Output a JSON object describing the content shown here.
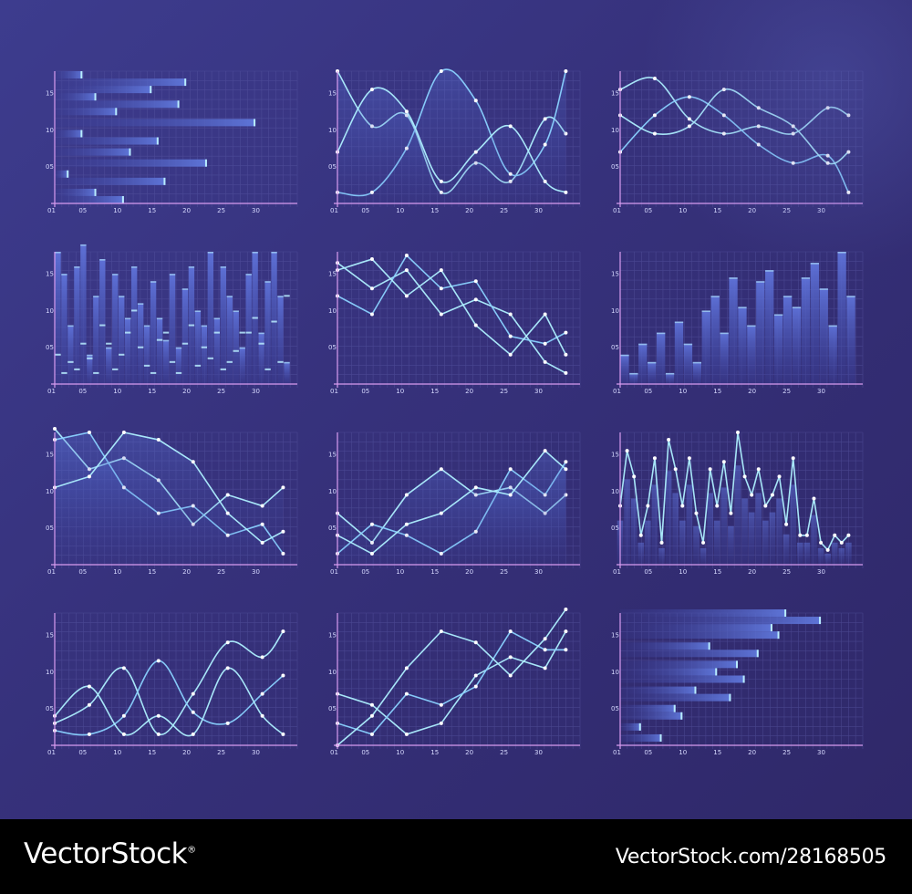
{
  "palette": {
    "grid": "#5b5aa6",
    "axis": "#d89cf0",
    "line": "#8ad2ff",
    "line_bright": "#aef0ff",
    "bar": "#5a6fd2",
    "bar_cap": "#b8ecff",
    "point": "#ffffff",
    "tick_text": "#d7d9ff"
  },
  "footer": {
    "brand": "VectorStock",
    "registered": "®",
    "credit": "VectorStock.com/28168505"
  },
  "chart_data": [
    {
      "type": "bar",
      "orientation": "horizontal",
      "xticks": [
        "01",
        "05",
        "10",
        "15",
        "20",
        "25",
        "30"
      ],
      "yticks": [
        "05",
        "10",
        "15"
      ],
      "xlim": [
        1,
        35
      ],
      "ylim": [
        0,
        18
      ],
      "grid": true,
      "bars": [
        {
          "y": 17.5,
          "value": 5
        },
        {
          "y": 16.5,
          "value": 20
        },
        {
          "y": 15.5,
          "value": 15
        },
        {
          "y": 14.5,
          "value": 7
        },
        {
          "y": 13.5,
          "value": 19
        },
        {
          "y": 12.5,
          "value": 10
        },
        {
          "y": 11.0,
          "value": 30
        },
        {
          "y": 9.5,
          "value": 5
        },
        {
          "y": 8.5,
          "value": 16
        },
        {
          "y": 7.0,
          "value": 12
        },
        {
          "y": 5.5,
          "value": 23
        },
        {
          "y": 4.0,
          "value": 3
        },
        {
          "y": 3.0,
          "value": 17
        },
        {
          "y": 1.5,
          "value": 7
        },
        {
          "y": 0.5,
          "value": 11
        }
      ]
    },
    {
      "type": "line",
      "smooth": true,
      "xticks": [
        "01",
        "05",
        "10",
        "15",
        "20",
        "25",
        "30"
      ],
      "yticks": [
        "05",
        "10",
        "15"
      ],
      "xlim": [
        1,
        35
      ],
      "ylim": [
        0,
        18
      ],
      "grid": true,
      "area": true,
      "series": [
        {
          "x": [
            1,
            6,
            11,
            16,
            21,
            26,
            31,
            34
          ],
          "y": [
            18,
            10.5,
            12,
            1.5,
            5.5,
            3,
            11.5,
            9.5
          ]
        },
        {
          "x": [
            1,
            6,
            11,
            16,
            21,
            26,
            31,
            34
          ],
          "y": [
            1.5,
            1.5,
            7.5,
            18,
            14,
            4,
            8,
            18
          ]
        },
        {
          "x": [
            1,
            6,
            11,
            16,
            21,
            26,
            31,
            34
          ],
          "y": [
            7,
            15.5,
            12.5,
            3,
            7,
            10.5,
            3,
            1.5
          ]
        }
      ]
    },
    {
      "type": "line",
      "smooth": true,
      "xticks": [
        "01",
        "05",
        "10",
        "15",
        "20",
        "25",
        "30"
      ],
      "yticks": [
        "05",
        "10",
        "15"
      ],
      "xlim": [
        1,
        35
      ],
      "ylim": [
        0,
        18
      ],
      "grid": true,
      "series": [
        {
          "x": [
            1,
            6,
            11,
            16,
            21,
            26,
            31,
            34
          ],
          "y": [
            15.5,
            17,
            11.5,
            9.5,
            10.5,
            9.5,
            13,
            12
          ]
        },
        {
          "x": [
            1,
            6,
            11,
            16,
            21,
            26,
            31,
            34
          ],
          "y": [
            7,
            12,
            14.5,
            12,
            8,
            5.5,
            6.5,
            1.5
          ]
        },
        {
          "x": [
            1,
            6,
            11,
            16,
            21,
            26,
            31,
            34
          ],
          "y": [
            12,
            9.5,
            10.5,
            15.5,
            13,
            10.5,
            5.5,
            7
          ]
        }
      ]
    },
    {
      "type": "bar",
      "orientation": "vertical",
      "xticks": [
        "01",
        "05",
        "10",
        "15",
        "20",
        "25",
        "30"
      ],
      "yticks": [
        "05",
        "10",
        "15"
      ],
      "xlim": [
        1,
        35
      ],
      "ylim": [
        0,
        18
      ],
      "grid": true,
      "values": [
        18,
        15,
        8,
        16,
        19,
        4,
        12,
        17,
        5,
        15,
        12,
        9,
        16,
        11,
        8,
        14,
        9,
        6,
        15,
        5,
        13,
        16,
        10,
        8,
        18,
        9,
        16,
        12,
        10,
        5,
        15,
        18,
        7,
        14,
        18,
        12,
        3
      ],
      "marker_values": [
        4,
        1.5,
        3,
        2,
        5.5,
        3.5,
        1.5,
        8,
        5.5,
        2,
        4,
        7,
        10,
        5,
        2.5,
        1.5,
        6,
        7,
        3,
        1.5,
        5.5,
        8,
        2.5,
        5,
        3.5,
        7,
        2,
        3,
        4.5,
        7,
        7,
        9,
        5.5,
        2,
        8.5,
        3,
        12
      ]
    },
    {
      "type": "line",
      "smooth": false,
      "xticks": [
        "01",
        "05",
        "10",
        "15",
        "20",
        "25",
        "30"
      ],
      "yticks": [
        "05",
        "10",
        "15"
      ],
      "xlim": [
        1,
        35
      ],
      "ylim": [
        0,
        18
      ],
      "grid": true,
      "series": [
        {
          "x": [
            1,
            6,
            11,
            16,
            21,
            26,
            31,
            34
          ],
          "y": [
            16.5,
            13,
            15.5,
            9.5,
            11.5,
            9.5,
            3,
            1.5
          ]
        },
        {
          "x": [
            1,
            6,
            11,
            16,
            21,
            26,
            31,
            34
          ],
          "y": [
            12,
            9.5,
            17.5,
            13,
            14,
            6.5,
            5.5,
            7
          ]
        },
        {
          "x": [
            1,
            6,
            11,
            16,
            21,
            26,
            31,
            34
          ],
          "y": [
            15.5,
            17,
            12,
            15.5,
            8,
            4,
            9.5,
            4
          ]
        }
      ]
    },
    {
      "type": "bar",
      "orientation": "vertical",
      "xticks": [
        "01",
        "05",
        "10",
        "15",
        "20",
        "25",
        "30"
      ],
      "yticks": [
        "05",
        "10",
        "15"
      ],
      "xlim": [
        1,
        35
      ],
      "ylim": [
        0,
        18
      ],
      "grid": true,
      "values": [
        4,
        1.5,
        5.5,
        3,
        7,
        1.5,
        8.5,
        5.5,
        3,
        10,
        12,
        7,
        14.5,
        10.5,
        8,
        14,
        15.5,
        9.5,
        12,
        10.5,
        14.5,
        16.5,
        13,
        8,
        18,
        12
      ]
    },
    {
      "type": "line",
      "smooth": false,
      "xticks": [
        "01",
        "05",
        "10",
        "15",
        "20",
        "25",
        "30"
      ],
      "yticks": [
        "05",
        "10",
        "15"
      ],
      "xlim": [
        1,
        35
      ],
      "ylim": [
        0,
        18
      ],
      "grid": true,
      "area": true,
      "series": [
        {
          "x": [
            1,
            6,
            11,
            16,
            21,
            26,
            31,
            34
          ],
          "y": [
            18.5,
            13,
            14.5,
            11.5,
            5.5,
            9.5,
            8,
            10.5
          ]
        },
        {
          "x": [
            1,
            6,
            11,
            16,
            21,
            26,
            31,
            34
          ],
          "y": [
            17,
            18,
            10.5,
            7,
            8,
            4,
            5.5,
            1.5
          ]
        },
        {
          "x": [
            1,
            6,
            11,
            16,
            21,
            26,
            31,
            34
          ],
          "y": [
            10.5,
            12,
            18,
            17,
            14,
            7,
            3,
            4.5
          ]
        }
      ]
    },
    {
      "type": "line",
      "smooth": false,
      "xticks": [
        "01",
        "05",
        "10",
        "15",
        "20",
        "25",
        "30"
      ],
      "yticks": [
        "05",
        "10",
        "15"
      ],
      "xlim": [
        1,
        35
      ],
      "ylim": [
        0,
        18
      ],
      "grid": true,
      "area": true,
      "series": [
        {
          "x": [
            1,
            6,
            11,
            16,
            21,
            26,
            31,
            34
          ],
          "y": [
            7,
            3,
            9.5,
            13,
            9.5,
            10.5,
            7,
            9.5
          ]
        },
        {
          "x": [
            1,
            6,
            11,
            16,
            21,
            26,
            31,
            34
          ],
          "y": [
            1.5,
            5.5,
            4,
            1.5,
            4.5,
            13,
            9.5,
            14
          ]
        },
        {
          "x": [
            1,
            6,
            11,
            16,
            21,
            26,
            31,
            34
          ],
          "y": [
            4,
            1.5,
            5.5,
            7,
            10.5,
            9.5,
            15.5,
            13
          ]
        }
      ]
    },
    {
      "type": "line",
      "smooth": false,
      "xticks": [
        "01",
        "05",
        "10",
        "15",
        "20",
        "25",
        "30"
      ],
      "yticks": [
        "05",
        "10",
        "15"
      ],
      "xlim": [
        1,
        35
      ],
      "ylim": [
        0,
        18
      ],
      "grid": true,
      "bars_behind": true,
      "series": [
        {
          "x": [
            1,
            2,
            3,
            4,
            5,
            6,
            7,
            8,
            9,
            10,
            11,
            12,
            13,
            14,
            15,
            16,
            17,
            18,
            19,
            20,
            21,
            22,
            23,
            24,
            25,
            26,
            27,
            28,
            29,
            30,
            31,
            32,
            33,
            34
          ],
          "y": [
            8,
            15.5,
            12,
            4,
            8,
            14.5,
            3,
            17,
            13,
            8,
            14.5,
            7,
            3,
            13,
            8,
            14,
            7,
            18,
            12,
            9.5,
            13,
            8,
            9.5,
            12,
            5.5,
            14.5,
            4,
            4,
            9,
            3,
            2,
            4,
            3,
            4
          ]
        }
      ]
    },
    {
      "type": "line",
      "smooth": true,
      "xticks": [
        "01",
        "05",
        "10",
        "15",
        "20",
        "25",
        "30"
      ],
      "yticks": [
        "05",
        "10",
        "15"
      ],
      "xlim": [
        1,
        35
      ],
      "ylim": [
        0,
        18
      ],
      "grid": true,
      "series": [
        {
          "x": [
            1,
            6,
            11,
            16,
            21,
            26,
            31,
            34
          ],
          "y": [
            3,
            5.5,
            10.5,
            1.5,
            7,
            14,
            12,
            15.5
          ]
        },
        {
          "x": [
            1,
            6,
            11,
            16,
            21,
            26,
            31,
            34
          ],
          "y": [
            2,
            1.5,
            4,
            11.5,
            4.5,
            3,
            7,
            9.5
          ]
        },
        {
          "x": [
            1,
            6,
            11,
            16,
            21,
            26,
            31,
            34
          ],
          "y": [
            4,
            8,
            1.5,
            4,
            1.5,
            10.5,
            4,
            1.5
          ]
        }
      ]
    },
    {
      "type": "line",
      "smooth": false,
      "xticks": [
        "01",
        "05",
        "10",
        "15",
        "20",
        "25",
        "30"
      ],
      "yticks": [
        "05",
        "10",
        "15"
      ],
      "xlim": [
        1,
        35
      ],
      "ylim": [
        0,
        18
      ],
      "grid": true,
      "series": [
        {
          "x": [
            1,
            6,
            11,
            16,
            21,
            26,
            31,
            34
          ],
          "y": [
            7,
            5.5,
            1.5,
            3,
            9.5,
            12,
            10.5,
            15.5
          ]
        },
        {
          "x": [
            1,
            6,
            11,
            16,
            21,
            26,
            31,
            34
          ],
          "y": [
            3,
            1.5,
            7,
            5.5,
            8,
            15.5,
            13,
            13
          ]
        },
        {
          "x": [
            1,
            6,
            11,
            16,
            21,
            26,
            31,
            34
          ],
          "y": [
            0,
            4,
            10.5,
            15.5,
            14,
            9.5,
            14.5,
            18.5
          ]
        }
      ]
    },
    {
      "type": "bar",
      "orientation": "horizontal",
      "xticks": [
        "01",
        "05",
        "10",
        "15",
        "20",
        "25",
        "30"
      ],
      "yticks": [
        "05",
        "10",
        "15"
      ],
      "xlim": [
        1,
        35
      ],
      "ylim": [
        0,
        18
      ],
      "grid": true,
      "bars": [
        {
          "y": 18.0,
          "value": 25
        },
        {
          "y": 17.0,
          "value": 30
        },
        {
          "y": 16.0,
          "value": 23
        },
        {
          "y": 15.0,
          "value": 24
        },
        {
          "y": 13.5,
          "value": 14
        },
        {
          "y": 12.5,
          "value": 21
        },
        {
          "y": 11.0,
          "value": 18
        },
        {
          "y": 10.0,
          "value": 15
        },
        {
          "y": 9.0,
          "value": 19
        },
        {
          "y": 7.5,
          "value": 12
        },
        {
          "y": 6.5,
          "value": 17
        },
        {
          "y": 5.0,
          "value": 9
        },
        {
          "y": 4.0,
          "value": 10
        },
        {
          "y": 2.5,
          "value": 4
        },
        {
          "y": 1.0,
          "value": 7
        }
      ]
    }
  ]
}
